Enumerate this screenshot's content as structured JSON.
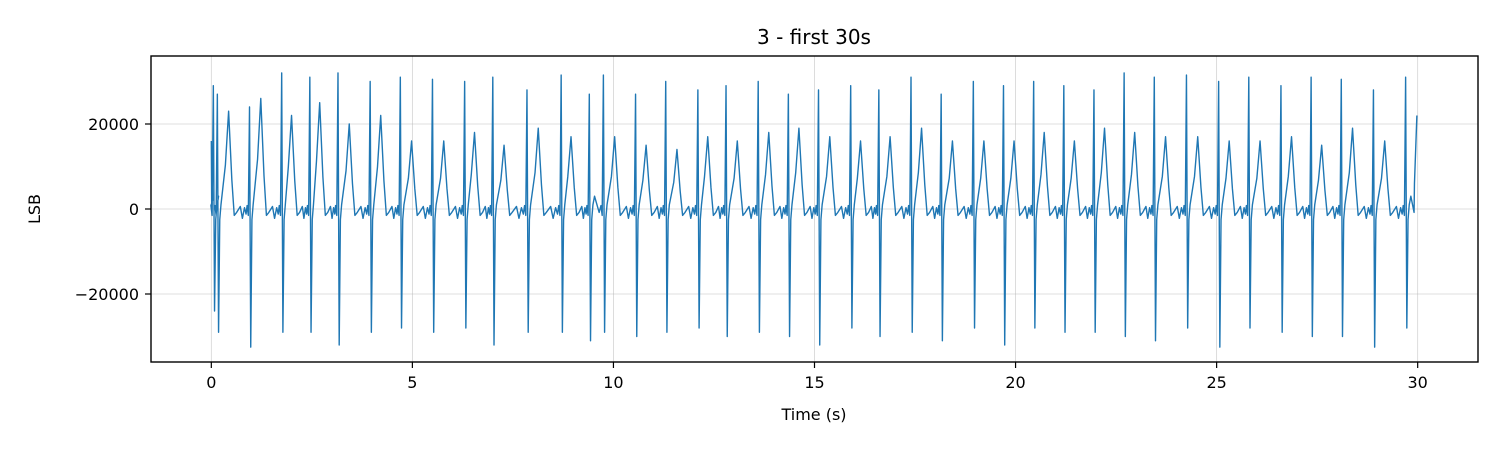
{
  "chart_data": {
    "type": "line",
    "title": "3 - first 30s",
    "xlabel": "Time (s)",
    "ylabel": "LSB",
    "xlim": [
      -1.5,
      31.5
    ],
    "ylim": [
      -36000,
      36000
    ],
    "x_ticks": [
      0,
      5,
      10,
      15,
      20,
      25,
      30
    ],
    "x_tick_labels": [
      "0",
      "5",
      "10",
      "15",
      "20",
      "25",
      "30"
    ],
    "y_ticks": [
      -20000,
      0,
      20000
    ],
    "y_tick_labels": [
      "−20000",
      "0",
      "20000"
    ],
    "grid": true,
    "series": [
      {
        "color": "#1f77b4",
        "beat_times": [
          0.05,
          0.15,
          0.95,
          1.75,
          2.45,
          3.15,
          3.95,
          4.7,
          5.5,
          6.3,
          7.0,
          7.85,
          8.7,
          9.4,
          9.75,
          10.55,
          11.3,
          12.1,
          12.8,
          13.6,
          14.35,
          15.1,
          15.9,
          16.6,
          17.4,
          18.15,
          18.95,
          19.7,
          20.45,
          21.2,
          21.95,
          22.7,
          23.45,
          24.25,
          25.05,
          25.8,
          26.6,
          27.35,
          28.1,
          28.9,
          29.7
        ],
        "r_peaks": [
          29000,
          27000,
          24000,
          32000,
          31000,
          32000,
          30000,
          31000,
          30500,
          30000,
          31000,
          28000,
          31500,
          27000,
          31500,
          27000,
          30000,
          28000,
          29000,
          30000,
          27000,
          28000,
          29000,
          28000,
          31000,
          27000,
          30000,
          29000,
          30000,
          29000,
          28000,
          32000,
          31000,
          31500,
          30000,
          31000,
          29000,
          31000,
          30500,
          28000,
          31000
        ],
        "s_troughs": [
          -24000,
          -29000,
          -32500,
          -29000,
          -29000,
          -32000,
          -29000,
          -28000,
          -29000,
          -28000,
          -32000,
          -29000,
          -29000,
          -31000,
          -29000,
          -30000,
          -29000,
          -28000,
          -30000,
          -29000,
          -30000,
          -32000,
          -28000,
          -30000,
          -29000,
          -31000,
          -28000,
          -32000,
          -28000,
          -29000,
          -29000,
          -30000,
          -31000,
          -28000,
          -32500,
          -28000,
          -29000,
          -30000,
          -30000,
          -32500,
          -28000
        ],
        "t_peaks": [
          19000,
          23000,
          26000,
          22000,
          25000,
          20000,
          22000,
          16000,
          16000,
          18000,
          15000,
          19000,
          17000,
          17000,
          17000,
          15000,
          14000,
          17000,
          16000,
          18000,
          19000,
          17000,
          16000,
          17000,
          19000,
          16000,
          16000,
          16000,
          18000,
          16000,
          19000,
          18000,
          17000,
          17000,
          16000,
          16000,
          17000,
          15000,
          19000,
          16000,
          19000
        ],
        "end_point": [
          29.98,
          22000
        ]
      }
    ]
  }
}
